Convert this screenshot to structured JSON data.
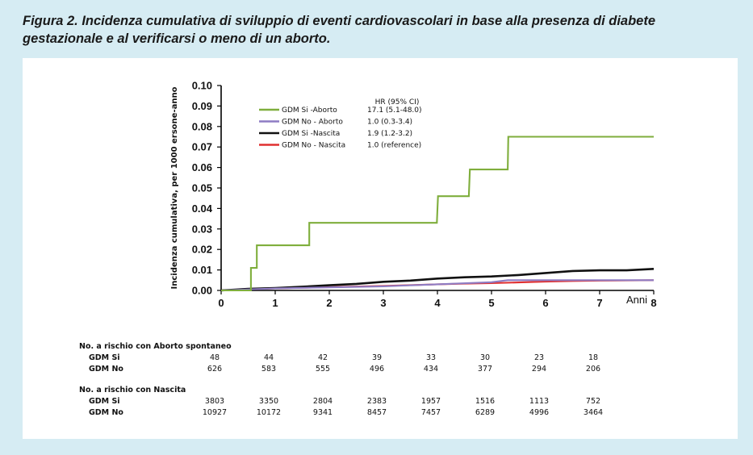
{
  "caption": "Figura 2. Incidenza cumulativa di sviluppio di eventi cardiovascolari in base alla presenza di diabete gestazionale e al verificarsi o meno di un aborto.",
  "chart_data": {
    "type": "line",
    "title": "",
    "xlabel": "Anni",
    "ylabel": "Incidenza cumulativa, per 1000 ersone-anno",
    "xlim": [
      0,
      8
    ],
    "ylim": [
      0,
      0.1
    ],
    "x_ticks": [
      "0",
      "1",
      "2",
      "3",
      "4",
      "5",
      "6",
      "7",
      "8"
    ],
    "y_ticks": [
      "0.00",
      "0.01",
      "0.02",
      "0.03",
      "0.04",
      "0.05",
      "0.06",
      "0.07",
      "0.08",
      "0.09",
      "0.10"
    ],
    "grid": false,
    "legend_position": "top-left",
    "hr_header": "HR (95% CI)",
    "series": [
      {
        "name": "GDM Si -Aborto",
        "color": "#7fae3c",
        "hr": "17.1 (5.1-48.0)",
        "step": true,
        "x": [
          0,
          0.55,
          0.55,
          0.66,
          0.66,
          1.63,
          1.63,
          3.99,
          4.01,
          4.58,
          4.6,
          5.3,
          5.31,
          8
        ],
        "y": [
          0,
          0,
          0.011,
          0.011,
          0.022,
          0.022,
          0.033,
          0.033,
          0.046,
          0.046,
          0.059,
          0.059,
          0.075,
          0.075
        ]
      },
      {
        "name": "GDM No - Aborto",
        "color": "#8e7cc3",
        "hr": "1.0 (0.3-3.4)",
        "step": false,
        "x": [
          0,
          1,
          2,
          3,
          4,
          5,
          5.3,
          6,
          7,
          8
        ],
        "y": [
          0,
          0.001,
          0.0015,
          0.002,
          0.003,
          0.004,
          0.005,
          0.005,
          0.005,
          0.005
        ]
      },
      {
        "name": "GDM Si -Nascita",
        "color": "#111111",
        "hr": "1.9 (1.2-3.2)",
        "step": false,
        "x": [
          0,
          0.5,
          1,
          1.5,
          2,
          2.5,
          3,
          3.5,
          4,
          4.5,
          5,
          5.5,
          6,
          6.5,
          7,
          7.5,
          8
        ],
        "y": [
          0,
          0.0008,
          0.0012,
          0.0018,
          0.0025,
          0.0032,
          0.0042,
          0.0048,
          0.0058,
          0.0064,
          0.0068,
          0.0075,
          0.0085,
          0.0095,
          0.0098,
          0.0098,
          0.0105
        ]
      },
      {
        "name": "GDM No - Nascita",
        "color": "#e03030",
        "hr": "1.0 (reference)",
        "step": false,
        "x": [
          0,
          0.5,
          1,
          1.5,
          2,
          2.5,
          3,
          3.5,
          4,
          4.5,
          5,
          5.5,
          6,
          6.5,
          7,
          7.5,
          8
        ],
        "y": [
          0,
          0.0006,
          0.001,
          0.0013,
          0.0016,
          0.0019,
          0.0022,
          0.0026,
          0.003,
          0.0033,
          0.0036,
          0.0039,
          0.0043,
          0.0046,
          0.0048,
          0.0049,
          0.005
        ]
      }
    ]
  },
  "risk_table": {
    "sections": [
      {
        "title": "No. a rischio con Aborto spontaneo",
        "rows": [
          {
            "label": "GDM Si",
            "values": [
              "48",
              "44",
              "42",
              "39",
              "33",
              "30",
              "23",
              "18"
            ]
          },
          {
            "label": "GDM No",
            "values": [
              "626",
              "583",
              "555",
              "496",
              "434",
              "377",
              "294",
              "206"
            ]
          }
        ]
      },
      {
        "title": "No. a rischio con Nascita",
        "rows": [
          {
            "label": "GDM Si",
            "values": [
              "3803",
              "3350",
              "2804",
              "2383",
              "1957",
              "1516",
              "1113",
              "752"
            ]
          },
          {
            "label": "GDM No",
            "values": [
              "10927",
              "10172",
              "9341",
              "8457",
              "7457",
              "6289",
              "4996",
              "3464"
            ]
          }
        ]
      }
    ]
  }
}
